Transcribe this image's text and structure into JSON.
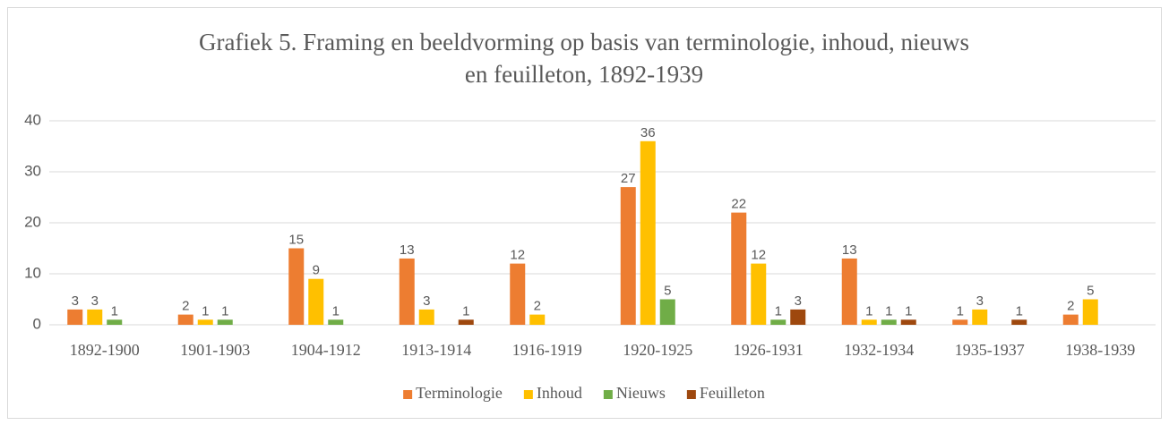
{
  "chart_data": {
    "type": "bar",
    "title": [
      "Grafiek 5. Framing en beeldvorming op basis van terminologie, inhoud, nieuws",
      "en feuilleton, 1892-1939"
    ],
    "categories": [
      "1892-1900",
      "1901-1903",
      "1904-1912",
      "1913-1914",
      "1916-1919",
      "1920-1925",
      "1926-1931",
      "1932-1934",
      "1935-1937",
      "1938-1939"
    ],
    "series": [
      {
        "name": "Terminologie",
        "color": "#ed7d31",
        "values": [
          3,
          2,
          15,
          13,
          12,
          27,
          22,
          13,
          1,
          2
        ]
      },
      {
        "name": "Inhoud",
        "color": "#ffc000",
        "values": [
          3,
          1,
          9,
          3,
          2,
          36,
          12,
          1,
          3,
          5
        ]
      },
      {
        "name": "Nieuws",
        "color": "#70ad47",
        "values": [
          1,
          1,
          1,
          0,
          0,
          5,
          1,
          1,
          0,
          0
        ]
      },
      {
        "name": "Feuilleton",
        "color": "#9e480e",
        "values": [
          0,
          0,
          0,
          1,
          0,
          0,
          3,
          1,
          1,
          0
        ]
      }
    ],
    "ylim": [
      0,
      40
    ],
    "yticks": [
      0,
      10,
      20,
      30,
      40
    ],
    "grid": true,
    "legend": "bottom"
  }
}
